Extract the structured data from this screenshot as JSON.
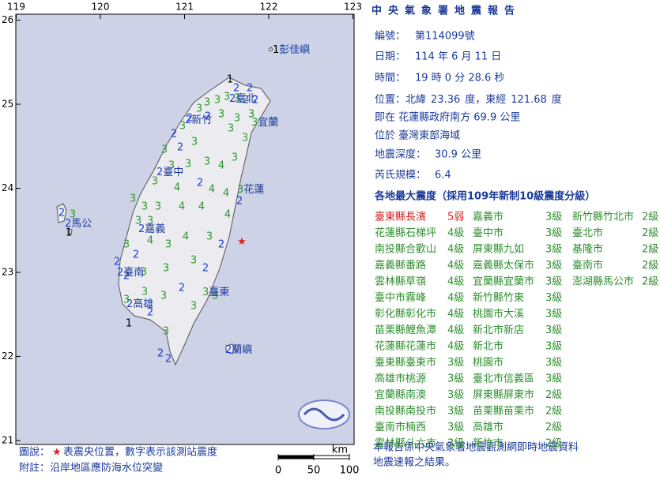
{
  "map": {
    "xticks": [
      119,
      120,
      121,
      122,
      123
    ],
    "yticks": [
      21,
      22,
      23,
      24,
      25,
      26
    ],
    "epicenter": {
      "latitude": 23.36,
      "longitude": 121.68
    },
    "level_colors": [
      "#000000",
      "#000000",
      "#1c3fd0",
      "#2f9a2f",
      "#2f8f2f",
      "#d42020"
    ],
    "stations": [
      1,
      2,
      2,
      3,
      3,
      2,
      2,
      3,
      3,
      3,
      2,
      2,
      3,
      3,
      3,
      3,
      3,
      3,
      2,
      3,
      2,
      3,
      3,
      4,
      3,
      3,
      3,
      3,
      4,
      2,
      4,
      4,
      2,
      3,
      3,
      3,
      4,
      4,
      4,
      3,
      3,
      3,
      2,
      4,
      3,
      4,
      3,
      2,
      2,
      2,
      3,
      3,
      3,
      3,
      3,
      3,
      2,
      3,
      1,
      2,
      3,
      2,
      2,
      2,
      3,
      1,
      2,
      3
    ],
    "places": [
      {
        "value": 1,
        "name": "彭佳嶼"
      },
      {
        "value": 2,
        "name": "臺北"
      },
      {
        "value": 3,
        "name": "宜蘭"
      },
      {
        "value": 2,
        "name": "新竹"
      },
      {
        "value": 2,
        "name": "臺中"
      },
      {
        "value": 3,
        "name": "花蓮"
      },
      {
        "value": 2,
        "name": "馬公"
      },
      {
        "value": 2,
        "name": "嘉義"
      },
      {
        "value": 2,
        "name": "臺南"
      },
      {
        "value": 2,
        "name": "高雄"
      },
      {
        "value": 3,
        "name": "臺東"
      },
      {
        "value": 2,
        "name": "蘭嶼"
      }
    ]
  },
  "report": {
    "title": "中央氣象署地震報告",
    "number": {
      "label": "編號：",
      "value": "第114099號"
    },
    "date": {
      "label": "日期：",
      "value": "114 年 6 月 11 日"
    },
    "time": {
      "label": "時間：",
      "value": "19 時 0 分 28.6 秒"
    },
    "position": {
      "label": "位置：",
      "lat_prefix": "北緯",
      "lat_suffix": "度，東經",
      "lon_suffix": "度"
    },
    "relative": "即在 花蓮縣政府南方 69.9 公里",
    "region": "位於 臺灣東部海域",
    "depth": {
      "label": "地震深度：",
      "value": "30.9 公里"
    },
    "magnitude": {
      "label": "芮氏規模：",
      "value": "6.4"
    },
    "table_title": "各地最大震度（採用109年新制10級震度分級）",
    "columns": [
      [
        {
          "place": "臺東縣長濱",
          "level": "5弱",
          "color": "#d42020"
        },
        {
          "place": "花蓮縣石梯坪",
          "level": "4級",
          "color": "#2f8f2f"
        },
        {
          "place": "南投縣合歡山",
          "level": "4級",
          "color": "#2f8f2f"
        },
        {
          "place": "嘉義縣番路",
          "level": "4級",
          "color": "#2f8f2f"
        },
        {
          "place": "雲林縣草嶺",
          "level": "4級",
          "color": "#2f8f2f"
        },
        {
          "place": "臺中市霧峰",
          "level": "4級",
          "color": "#2f8f2f"
        },
        {
          "place": "彰化縣彰化市",
          "level": "4級",
          "color": "#2f8f2f"
        },
        {
          "place": "苗栗縣鯉魚潭",
          "level": "4級",
          "color": "#2f8f2f"
        },
        {
          "place": "花蓮縣花蓮市",
          "level": "4級",
          "color": "#2f8f2f"
        },
        {
          "place": "臺東縣臺東市",
          "level": "3級",
          "color": "#2f8f2f"
        },
        {
          "place": "高雄市桃源",
          "level": "3級",
          "color": "#2f8f2f"
        },
        {
          "place": "宜蘭縣南澳",
          "level": "3級",
          "color": "#2f8f2f"
        },
        {
          "place": "南投縣南投市",
          "level": "3級",
          "color": "#2f8f2f"
        },
        {
          "place": "臺南市楠西",
          "level": "3級",
          "color": "#2f8f2f"
        },
        {
          "place": "雲林縣斗六市",
          "level": "3級",
          "color": "#2f8f2f"
        }
      ],
      [
        {
          "place": "嘉義市",
          "level": "3級",
          "color": "#2f8f2f"
        },
        {
          "place": "臺中市",
          "level": "3級",
          "color": "#2f8f2f"
        },
        {
          "place": "屏東縣九如",
          "level": "3級",
          "color": "#2f8f2f"
        },
        {
          "place": "嘉義縣太保市",
          "level": "3級",
          "color": "#2f8f2f"
        },
        {
          "place": "宜蘭縣宜蘭市",
          "level": "3級",
          "color": "#2f8f2f"
        },
        {
          "place": "新竹縣竹東",
          "level": "3級",
          "color": "#2f8f2f"
        },
        {
          "place": "桃園市大溪",
          "level": "3級",
          "color": "#2f8f2f"
        },
        {
          "place": "新北市新店",
          "level": "3級",
          "color": "#2f8f2f"
        },
        {
          "place": "新北市",
          "level": "3級",
          "color": "#2f8f2f"
        },
        {
          "place": "桃園市",
          "level": "3級",
          "color": "#2f8f2f"
        },
        {
          "place": "臺北市信義區",
          "level": "3級",
          "color": "#2f8f2f"
        },
        {
          "place": "屏東縣屏東市",
          "level": "2級",
          "color": "#2f8f2f"
        },
        {
          "place": "苗栗縣苗栗市",
          "level": "2級",
          "color": "#2f8f2f"
        },
        {
          "place": "高雄市",
          "level": "2級",
          "color": "#2f8f2f"
        },
        {
          "place": "新竹市",
          "level": "2級",
          "color": "#2f8f2f"
        }
      ],
      [
        {
          "place": "新竹縣竹北市",
          "level": "2級",
          "color": "#2f8f2f"
        },
        {
          "place": "臺北市",
          "level": "2級",
          "color": "#2f8f2f"
        },
        {
          "place": "基隆市",
          "level": "2級",
          "color": "#2f8f2f"
        },
        {
          "place": "臺南市",
          "level": "2級",
          "color": "#2f8f2f"
        },
        {
          "place": "澎湖縣馬公市",
          "level": "2級",
          "color": "#2f8f2f"
        }
      ]
    ],
    "note_1": "本報告係中央氣象署地震觀測網即時地震資料",
    "note_2": "地震速報之結果。"
  },
  "footer": {
    "legend_prefix": "圖說：",
    "legend_star": "★",
    "legend_text": "表震央位置，數字表示該測站震度",
    "remark": "附註：沿岸地區應防海水位突變",
    "scale_unit": "km",
    "scale_ticks": [
      0,
      50,
      100
    ]
  }
}
